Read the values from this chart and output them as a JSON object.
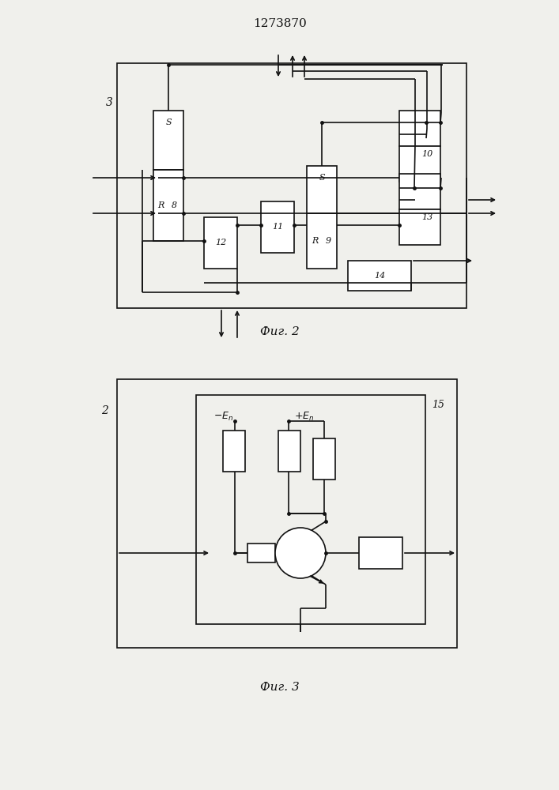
{
  "title": "1273870",
  "fig2_label": "Фиг. 2",
  "fig3_label": "Фиг. 3",
  "bg_color": "#f0f0ec",
  "line_color": "#111111",
  "lw": 1.2
}
